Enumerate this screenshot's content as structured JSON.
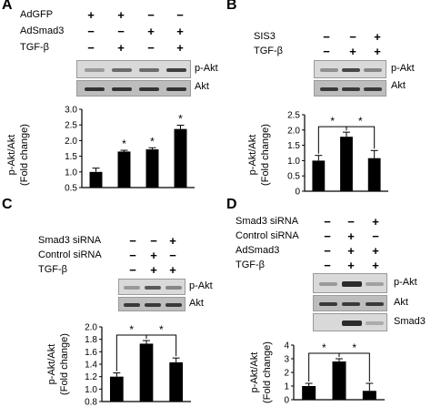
{
  "panels": {
    "A": {
      "letter": "A",
      "rows": [
        {
          "label": "AdGFP",
          "signs": [
            "+",
            "+",
            "−",
            "−"
          ]
        },
        {
          "label": "AdSmad3",
          "signs": [
            "−",
            "−",
            "+",
            "+"
          ]
        },
        {
          "label": "TGF-β",
          "signs": [
            "−",
            "+",
            "−",
            "+"
          ]
        }
      ],
      "blots": [
        "p-Akt",
        "Akt"
      ],
      "ylabel": "p-Akt/Akt",
      "ylabel2": "(Fold change)"
    },
    "B": {
      "letter": "B",
      "rows": [
        {
          "label": "SIS3",
          "signs": [
            "−",
            "−",
            "+"
          ]
        },
        {
          "label": "TGF-β",
          "signs": [
            "−",
            "+",
            "+"
          ]
        }
      ],
      "blots": [
        "p-Akt",
        "Akt"
      ],
      "ylabel": "p-Akt/Akt",
      "ylabel2": "(Fold change)"
    },
    "C": {
      "letter": "C",
      "rows": [
        {
          "label": "Smad3 siRNA",
          "signs": [
            "−",
            "−",
            "+"
          ]
        },
        {
          "label": "Control siRNA",
          "signs": [
            "−",
            "+",
            "−"
          ]
        },
        {
          "label": "TGF-β",
          "signs": [
            "−",
            "+",
            "+"
          ]
        }
      ],
      "blots": [
        "p-Akt",
        "Akt"
      ],
      "ylabel": "p-Akt/Akt",
      "ylabel2": "(Fold change)"
    },
    "D": {
      "letter": "D",
      "rows": [
        {
          "label": "Smad3 siRNA",
          "signs": [
            "−",
            "−",
            "+"
          ]
        },
        {
          "label": "Control siRNA",
          "signs": [
            "−",
            "+",
            "−"
          ]
        },
        {
          "label": "AdSmad3",
          "signs": [
            "−",
            "+",
            "+"
          ]
        },
        {
          "label": "TGF-β",
          "signs": [
            "−",
            "+",
            "+"
          ]
        }
      ],
      "blots": [
        "p-Akt",
        "Akt",
        "Smad3"
      ],
      "ylabel": "p-Akt/Akt",
      "ylabel2": "(Fold change)"
    }
  },
  "chart_data": [
    {
      "panel": "A",
      "type": "bar",
      "values": [
        1.0,
        1.65,
        1.72,
        2.37
      ],
      "errors": [
        0.12,
        0.04,
        0.05,
        0.12
      ],
      "ylim": [
        0.5,
        3.0
      ],
      "yticks": [
        "0.5",
        "1.0",
        "1.5",
        "2.0",
        "2.5",
        "3.0"
      ],
      "ytick_values": [
        0.5,
        1.0,
        1.5,
        2.0,
        2.5,
        3.0
      ],
      "annotations": [
        {
          "bar": 1,
          "text": "*"
        },
        {
          "bar": 2,
          "text": "*"
        },
        {
          "bar": 3,
          "text": "*"
        }
      ],
      "brackets": []
    },
    {
      "panel": "B",
      "type": "bar",
      "values": [
        1.0,
        1.78,
        1.08
      ],
      "errors": [
        0.17,
        0.15,
        0.25
      ],
      "ylim": [
        0.0,
        2.5
      ],
      "yticks": [
        "0",
        "0.5",
        "1.0",
        "1.5",
        "2.0",
        "2.5"
      ],
      "ytick_values": [
        0.0,
        0.5,
        1.0,
        1.5,
        2.0,
        2.5
      ],
      "annotations": [],
      "brackets": [
        {
          "from": 0,
          "to": 1,
          "text": "*"
        },
        {
          "from": 1,
          "to": 2,
          "text": "*"
        }
      ]
    },
    {
      "panel": "C",
      "type": "bar",
      "values": [
        1.2,
        1.73,
        1.43
      ],
      "errors": [
        0.06,
        0.05,
        0.07
      ],
      "ylim": [
        0.8,
        2.0
      ],
      "yticks": [
        "0.8",
        "1.0",
        "1.2",
        "1.4",
        "1.6",
        "1.8",
        "2.0"
      ],
      "ytick_values": [
        0.8,
        1.0,
        1.2,
        1.4,
        1.6,
        1.8,
        2.0
      ],
      "annotations": [],
      "brackets": [
        {
          "from": 0,
          "to": 1,
          "text": "*"
        },
        {
          "from": 1,
          "to": 2,
          "text": "*"
        }
      ]
    },
    {
      "panel": "D",
      "type": "bar",
      "values": [
        1.0,
        2.8,
        0.65
      ],
      "errors": [
        0.2,
        0.2,
        0.55
      ],
      "ylim": [
        0,
        4
      ],
      "yticks": [
        "0",
        "1",
        "2",
        "3",
        "4"
      ],
      "ytick_values": [
        0,
        1,
        2,
        3,
        4
      ],
      "annotations": [],
      "brackets": [
        {
          "from": 0,
          "to": 1,
          "text": "*"
        },
        {
          "from": 1,
          "to": 2,
          "text": "*"
        }
      ]
    }
  ]
}
